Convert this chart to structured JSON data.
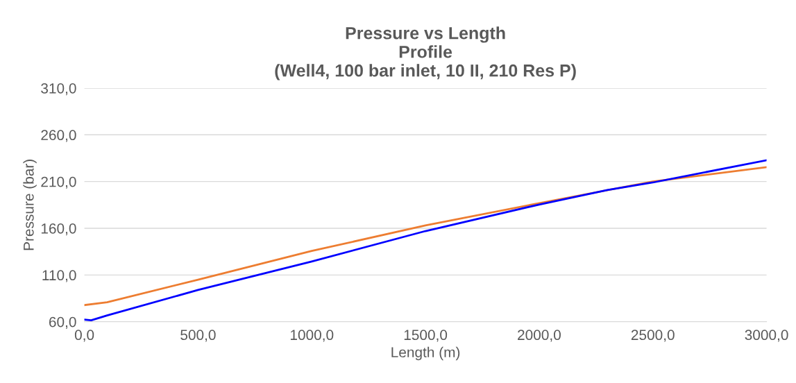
{
  "chart_data": {
    "type": "line",
    "title": "Pressure vs Length\nProfile\n(Well4, 100 bar inlet, 10 II, 210 Res P)",
    "xlabel": "Length (m)",
    "ylabel": "Pressure (bar)",
    "series": [
      {
        "color": "#ed7d31",
        "x": [
          0,
          100,
          500,
          1000,
          1500,
          2000,
          2500,
          3000
        ],
        "values": [
          77.8,
          80.8,
          105,
          135.7,
          163,
          186.9,
          210,
          225.4
        ]
      },
      {
        "color": "#0000ff",
        "x": [
          0,
          30,
          100,
          500,
          1000,
          1500,
          2000,
          2300,
          2500,
          3000
        ],
        "values": [
          62.2,
          61.5,
          66.7,
          94,
          124.5,
          157,
          185.4,
          201,
          209,
          232.8
        ]
      }
    ],
    "xlim": [
      0,
      3000
    ],
    "ylim": [
      60,
      310
    ],
    "xticks": [
      {
        "value": 0,
        "label": "0,0"
      },
      {
        "value": 500,
        "label": "500,0"
      },
      {
        "value": 1000,
        "label": "1000,0"
      },
      {
        "value": 1500,
        "label": "1500,0"
      },
      {
        "value": 2000,
        "label": "2000,0"
      },
      {
        "value": 2500,
        "label": "2500,0"
      },
      {
        "value": 3000,
        "label": "3000,0"
      }
    ],
    "yticks": [
      {
        "value": 60,
        "label": "60,0"
      },
      {
        "value": 110,
        "label": "110,0"
      },
      {
        "value": 160,
        "label": "160,0"
      },
      {
        "value": 210,
        "label": "210,0"
      },
      {
        "value": 260,
        "label": "260,0"
      },
      {
        "value": 310,
        "label": "310,0"
      }
    ],
    "grid": "y"
  }
}
